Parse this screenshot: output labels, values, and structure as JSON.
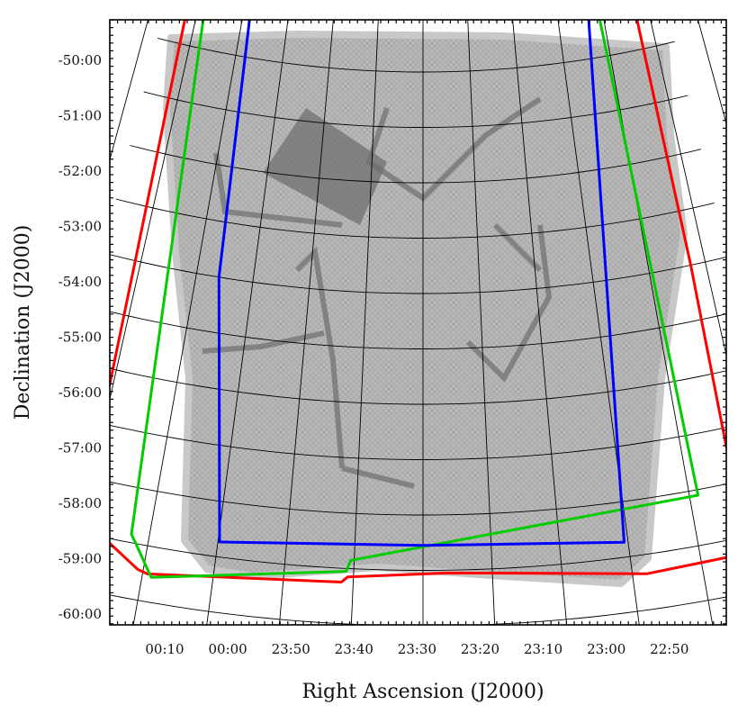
{
  "chart_data": {
    "type": "footprint-map",
    "xlabel": "Right Ascension (J2000)",
    "ylabel": "Declination (J2000)",
    "x_tick_labels": [
      "00:10",
      "00:00",
      "23:50",
      "23:40",
      "23:30",
      "23:20",
      "23:10",
      "23:00",
      "22:50"
    ],
    "y_tick_labels": [
      "-50:00",
      "-51:00",
      "-52:00",
      "-53:00",
      "-54:00",
      "-55:00",
      "-56:00",
      "-57:00",
      "-58:00",
      "-59:00",
      "-60:00"
    ],
    "x_ticks_hours": [
      0.1667,
      0.0,
      23.8333,
      23.6667,
      23.5,
      23.3333,
      23.1667,
      23.0,
      22.8333
    ],
    "y_ticks_deg": [
      -50,
      -51,
      -52,
      -53,
      -54,
      -55,
      -56,
      -57,
      -58,
      -59,
      -60
    ],
    "outlines": [
      {
        "color": "#ff0000",
        "ra": [
          0.38,
          0.35,
          0.34,
          0.32,
          0.18,
          0.155,
          23.695,
          23.68,
          23.44,
          22.965,
          22.74,
          22.72,
          22.71,
          22.715,
          22.72
        ],
        "dec": [
          -49.2,
          -55.0,
          -58.0,
          -59.8,
          -60.45,
          -60.5,
          -60.25,
          -60.15,
          -60.05,
          -60.35,
          -60.3,
          -59.2,
          -55.0,
          -50.0,
          -49.4
        ]
      },
      {
        "color": "#00cc00",
        "ra": [
          0.31,
          0.21,
          0.2,
          0.145,
          23.685,
          23.675,
          22.812,
          22.85,
          22.843,
          23.8,
          23.82,
          0.31
        ],
        "dec": [
          -50.25,
          -59.85,
          -59.95,
          -60.55,
          -60.05,
          -59.85,
          -59.1,
          -50.0,
          -49.3,
          -49.85,
          -49.75,
          -50.25
        ]
      },
      {
        "color": "#0000ff",
        "ra": [
          0.1445,
          0.1,
          23.9958,
          23.5,
          23.0097,
          22.8792,
          23.3958,
          23.955,
          0.1445
        ],
        "dec": [
          -49.92,
          -55.0,
          -59.73,
          -59.55,
          -59.73,
          -49.85,
          -49.6,
          -49.65,
          -49.92
        ]
      }
    ]
  }
}
